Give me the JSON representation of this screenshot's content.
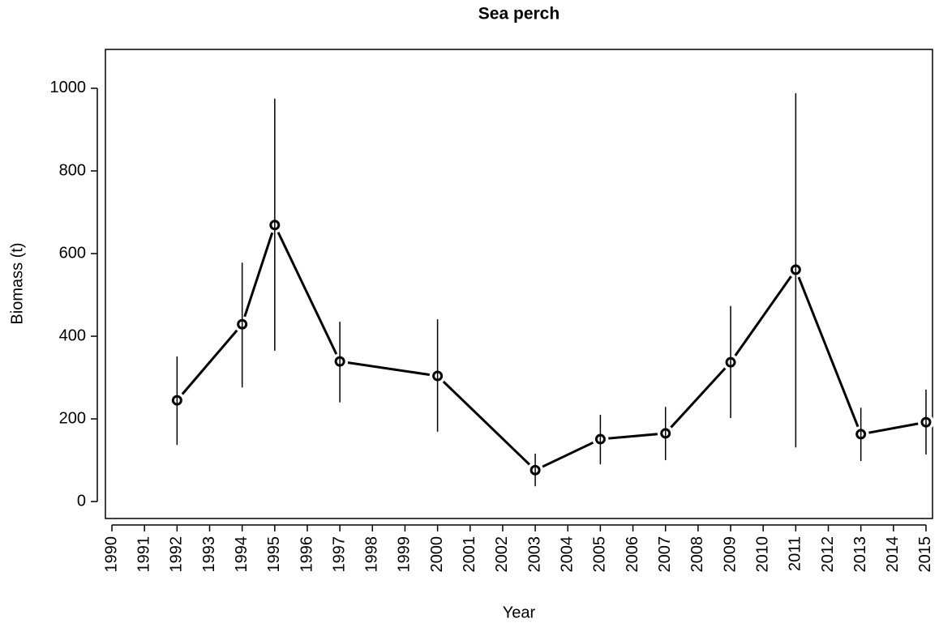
{
  "chart_data": {
    "type": "line",
    "title": "Sea perch",
    "x_label": "Year",
    "y_label": "Biomass (t)",
    "x": [
      1992,
      1994,
      1995,
      1997,
      2000,
      2003,
      2005,
      2007,
      2009,
      2011,
      2013,
      2015
    ],
    "series": [
      {
        "color": "#000000",
        "values": [
          245,
          429,
          669,
          339,
          304,
          76,
          151,
          165,
          337,
          561,
          163,
          192
        ],
        "lower": [
          137,
          276,
          365,
          240,
          169,
          37,
          90,
          100,
          202,
          131,
          98,
          114
        ],
        "upper": [
          351,
          578,
          975,
          435,
          441,
          116,
          210,
          229,
          473,
          988,
          227,
          271
        ]
      }
    ],
    "xlim": [
      1989.8,
      2015.2
    ],
    "ylim": [
      -41,
      1094
    ],
    "xticks": [
      1990,
      1991,
      1992,
      1993,
      1994,
      1995,
      1996,
      1997,
      1998,
      1999,
      2000,
      2001,
      2002,
      2003,
      2004,
      2005,
      2006,
      2007,
      2008,
      2009,
      2010,
      2011,
      2012,
      2013,
      2014,
      2015
    ],
    "yticks": [
      0,
      200,
      400,
      600,
      800,
      1000
    ]
  }
}
